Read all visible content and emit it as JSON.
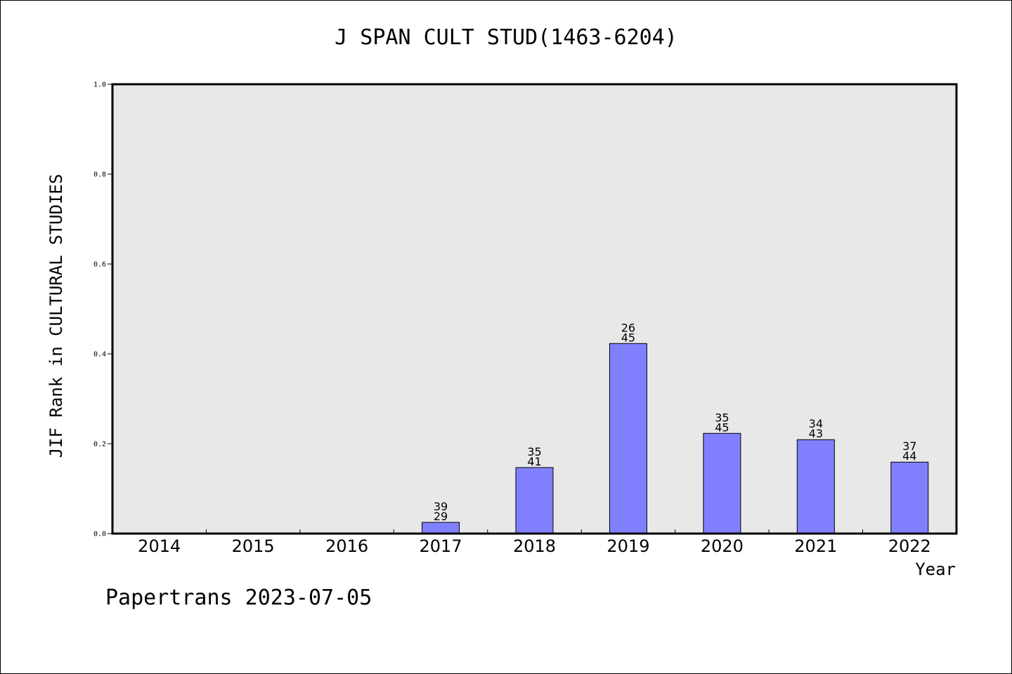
{
  "chart_data": {
    "type": "bar",
    "title": "J SPAN CULT STUD(1463-6204)",
    "xlabel": "Year",
    "ylabel": "JIF Rank in CULTURAL STUDIES",
    "ylim": [
      0,
      1.0
    ],
    "yticks": [
      "0.0",
      "0.2",
      "0.4",
      "0.6",
      "0.8",
      "1.0"
    ],
    "categories": [
      "2014",
      "2015",
      "2016",
      "2017",
      "2018",
      "2019",
      "2020",
      "2021",
      "2022"
    ],
    "values": [
      null,
      null,
      null,
      0.025,
      0.147,
      0.423,
      0.223,
      0.209,
      0.159
    ],
    "labels": [
      null,
      null,
      null,
      [
        "39",
        "29"
      ],
      [
        "35",
        "41"
      ],
      [
        "26",
        "45"
      ],
      [
        "35",
        "45"
      ],
      [
        "34",
        "43"
      ],
      [
        "37",
        "44"
      ]
    ],
    "grid": false,
    "colors": {
      "bar": "#8080ff",
      "plot_bg": "#e8e8e8"
    }
  },
  "footer": "Papertrans 2023-07-05"
}
